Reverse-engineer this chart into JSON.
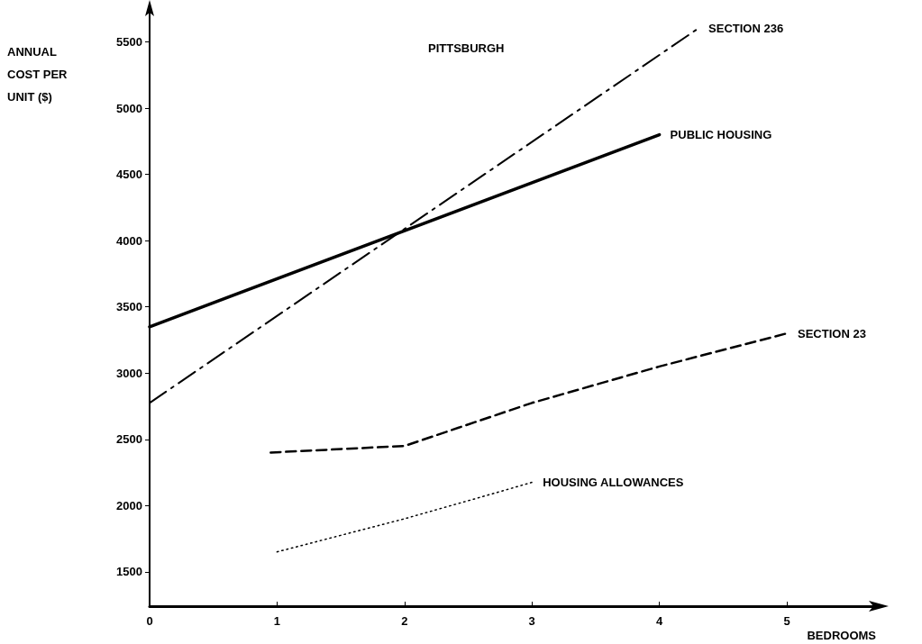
{
  "chart_data": {
    "type": "line",
    "title": "PITTSBURGH",
    "xlabel": "BEDROOMS",
    "ylabel": "ANNUAL COST PER UNIT ($)",
    "xlim": [
      0,
      5.7
    ],
    "ylim": [
      1240,
      5770
    ],
    "xticks": [
      0,
      1,
      2,
      3,
      4,
      5
    ],
    "yticks": [
      1500,
      2000,
      2500,
      3000,
      3500,
      4000,
      4500,
      5000,
      5500
    ],
    "grid": false,
    "legend": false,
    "marker": "none",
    "series": [
      {
        "name": "SECTION 236",
        "color": "#000000",
        "line_style": "dashdot",
        "x": [
          0,
          4.3
        ],
        "values": [
          2775,
          5600
        ]
      },
      {
        "name": "PUBLIC HOUSING",
        "color": "#000000",
        "line_style": "solid",
        "x": [
          0,
          4
        ],
        "values": [
          3350,
          4800
        ]
      },
      {
        "name": "SECTION 23",
        "color": "#000000",
        "line_style": "dashed",
        "x": [
          0.95,
          2,
          3,
          4,
          5
        ],
        "values": [
          2400,
          2450,
          2775,
          3050,
          3300
        ]
      },
      {
        "name": "HOUSING ALLOWANCES",
        "color": "#000000",
        "line_style": "dotted",
        "x": [
          1,
          2,
          2.55,
          3
        ],
        "values": [
          1650,
          1900,
          2050,
          2175
        ]
      }
    ]
  }
}
